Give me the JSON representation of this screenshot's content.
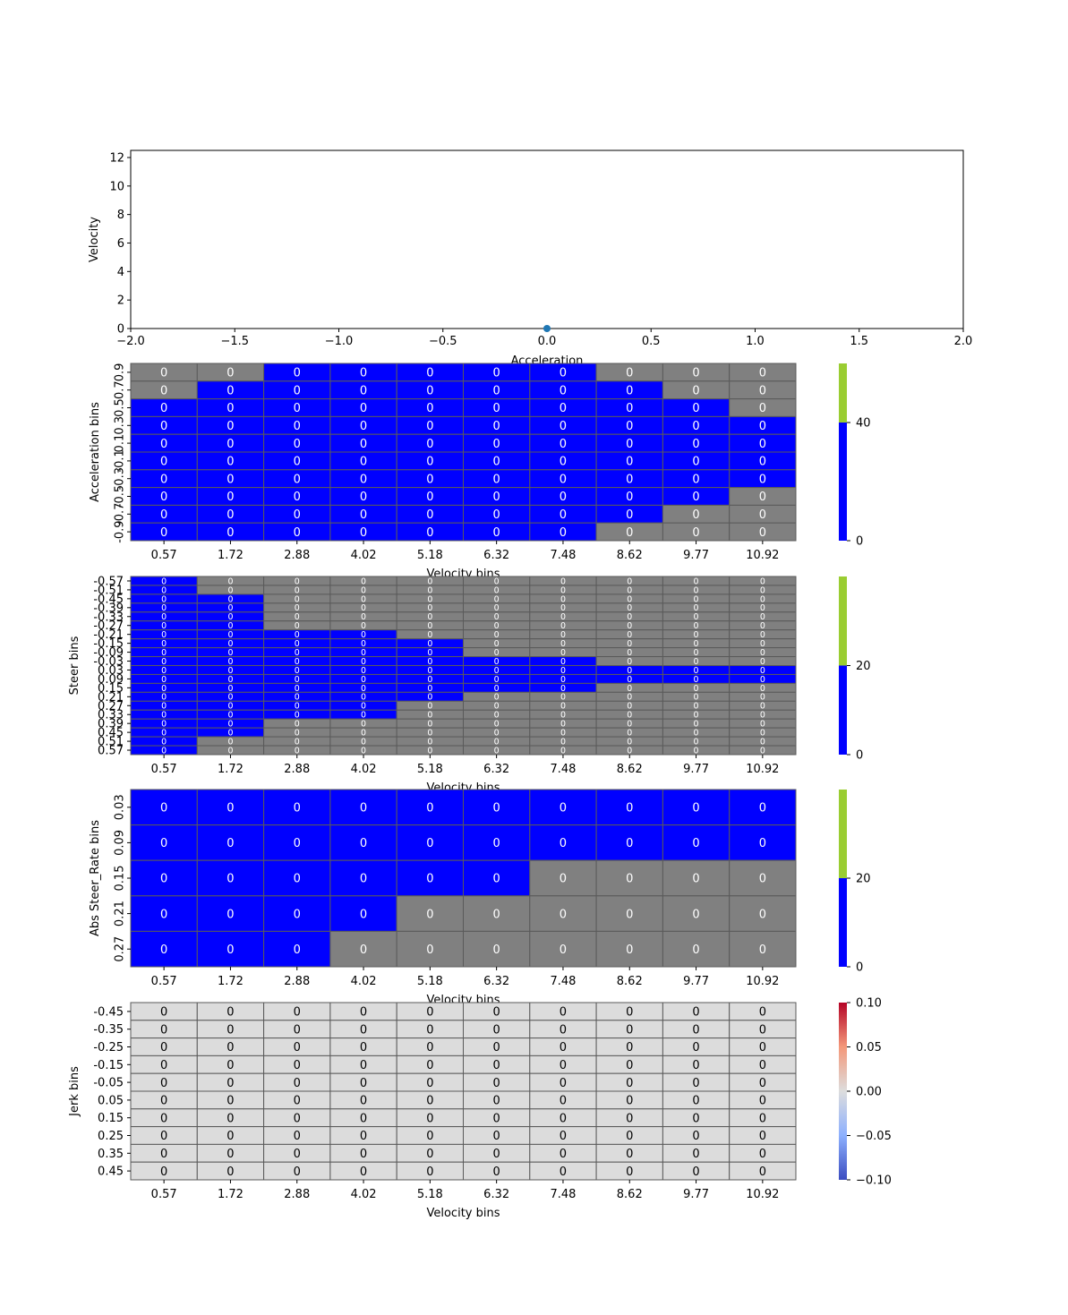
{
  "colors": {
    "blue": "#0000ff",
    "gray": "#808080",
    "lightgray": "#dcdcdc",
    "green": "#9acd32",
    "grid": "#5a5a5a",
    "marker": "#1f77b4"
  },
  "chart_data": [
    {
      "type": "scatter",
      "xlabel": "Acceleration",
      "ylabel": "Velocity",
      "xlim": [
        -2.0,
        2.0
      ],
      "ylim": [
        0,
        12.5
      ],
      "xticks": [
        "−2.0",
        "−1.5",
        "−1.0",
        "−0.5",
        "0.0",
        "0.5",
        "1.0",
        "1.5",
        "2.0"
      ],
      "xtick_values": [
        -2.0,
        -1.5,
        -1.0,
        -0.5,
        0.0,
        0.5,
        1.0,
        1.5,
        2.0
      ],
      "yticks": [
        "0",
        "2",
        "4",
        "6",
        "8",
        "10",
        "12"
      ],
      "ytick_values": [
        0,
        2,
        4,
        6,
        8,
        10,
        12
      ],
      "points": [
        {
          "x": 0.0,
          "y": 0.0
        }
      ]
    },
    {
      "type": "heatmap",
      "xlabel": "Velocity bins",
      "ylabel": "Acceleration bins",
      "xticks": [
        "0.57",
        "1.72",
        "2.88",
        "4.02",
        "5.18",
        "6.32",
        "7.48",
        "8.62",
        "9.77",
        "10.92"
      ],
      "yticks": [
        "0.9",
        "0.7",
        "0.5",
        "0.3",
        "0.1",
        "-0.1",
        "-0.3",
        "-0.5",
        "-0.7",
        "-0.9"
      ],
      "mask": [
        "GGBBBBBGGG",
        "GBBBBBBBGG",
        "BBBBBBBBBG",
        "BBBBBBBBBB",
        "BBBBBBBBBB",
        "BBBBBBBBBB",
        "BBBBBBBBBB",
        "BBBBBBBBBG",
        "BBBBBBBBGG",
        "BBBBBBBGGG"
      ],
      "cell_label": "0",
      "colorbar": {
        "ticks": [
          "0",
          "40"
        ],
        "tick_values": [
          0,
          40
        ],
        "max": 60,
        "split": 40
      }
    },
    {
      "type": "heatmap",
      "xlabel": "Velocity bins",
      "ylabel": "Steer bins",
      "xticks": [
        "0.57",
        "1.72",
        "2.88",
        "4.02",
        "5.18",
        "6.32",
        "7.48",
        "8.62",
        "9.77",
        "10.92"
      ],
      "yticks": [
        "-0.57",
        "-0.51",
        "-0.45",
        "-0.39",
        "-0.33",
        "-0.27",
        "-0.21",
        "-0.15",
        "-0.09",
        "-0.03",
        "0.03",
        "0.09",
        "0.15",
        "0.21",
        "0.27",
        "0.33",
        "0.39",
        "0.45",
        "0.51",
        "0.57"
      ],
      "mask": [
        "BGGGGGGGGG",
        "BGGGGGGGGG",
        "BBGGGGGGGG",
        "BBGGGGGGGG",
        "BBGGGGGGGG",
        "BBGGGGGGGG",
        "BBBBGGGGGG",
        "BBBBBGGGGG",
        "BBBBBGGGGG",
        "BBBBBBBGGG",
        "BBBBBBBBBB",
        "BBBBBBBBBB",
        "BBBBBBBGGG",
        "BBBBBGGGGG",
        "BBBBGGGGGG",
        "BBBBGGGGGG",
        "BBGGGGGGGG",
        "BBGGGGGGGG",
        "BGGGGGGGGG",
        "BGGGGGGGGG"
      ],
      "cell_label": "0",
      "colorbar": {
        "ticks": [
          "0",
          "20"
        ],
        "tick_values": [
          0,
          20
        ],
        "max": 40,
        "split": 20
      }
    },
    {
      "type": "heatmap",
      "xlabel": "Velocity bins",
      "ylabel": "Abs Steer_Rate bins",
      "xticks": [
        "0.57",
        "1.72",
        "2.88",
        "4.02",
        "5.18",
        "6.32",
        "7.48",
        "8.62",
        "9.77",
        "10.92"
      ],
      "yticks": [
        "0.03",
        "0.09",
        "0.15",
        "0.21",
        "0.27"
      ],
      "mask": [
        "BBBBBBBBBB",
        "BBBBBBBBBB",
        "BBBBBBGGGG",
        "BBBBGGGGGG",
        "BBBGGGGGGG"
      ],
      "cell_label": "0",
      "colorbar": {
        "ticks": [
          "0",
          "20"
        ],
        "tick_values": [
          0,
          20
        ],
        "max": 40,
        "split": 20
      }
    },
    {
      "type": "heatmap",
      "xlabel": "Velocity bins",
      "ylabel": "Jerk bins",
      "xticks": [
        "0.57",
        "1.72",
        "2.88",
        "4.02",
        "5.18",
        "6.32",
        "7.48",
        "8.62",
        "9.77",
        "10.92"
      ],
      "yticks": [
        "-0.45",
        "-0.35",
        "-0.25",
        "-0.15",
        "-0.05",
        "0.05",
        "0.15",
        "0.25",
        "0.35",
        "0.45"
      ],
      "mask": [
        "LLLLLLLLLL",
        "LLLLLLLLLL",
        "LLLLLLLLLL",
        "LLLLLLLLLL",
        "LLLLLLLLLL",
        "LLLLLLLLLL",
        "LLLLLLLLLL",
        "LLLLLLLLLL",
        "LLLLLLLLLL",
        "LLLLLLLLLL"
      ],
      "cell_label": "0",
      "colorbar": {
        "ticks": [
          "0.10",
          "0.05",
          "0.00",
          "−0.05",
          "−0.10"
        ],
        "tick_values": [
          0.1,
          0.05,
          0.0,
          -0.05,
          -0.1
        ],
        "min": -0.1,
        "max": 0.1,
        "colormap": "coolwarm"
      }
    }
  ]
}
